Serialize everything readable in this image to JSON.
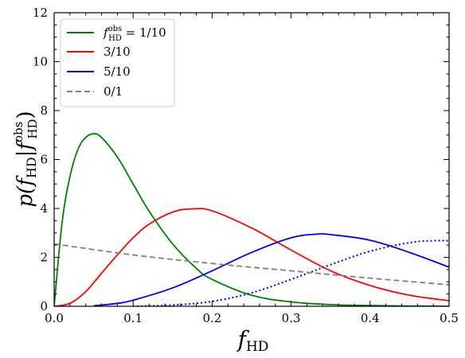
{
  "chart_data": {
    "type": "line",
    "xlabel_main": "f",
    "xlabel_sub": "HD",
    "ylabel": {
      "p": "p(",
      "f": "f",
      "sub1": "HD",
      "bar": "|",
      "f2": "f",
      "sup": "obs",
      "sub2": "HD",
      "close": ")"
    },
    "xlim": [
      0.0,
      0.5
    ],
    "ylim": [
      0,
      12
    ],
    "x_ticks": [
      "0.0",
      "0.1",
      "0.2",
      "0.3",
      "0.4",
      "0.5"
    ],
    "y_ticks": [
      "0",
      "2",
      "4",
      "6",
      "8",
      "10",
      "12"
    ],
    "legend_position": "top-left",
    "legend": [
      {
        "label_parts": {
          "f": "f",
          "sup": "obs",
          "sub": "HD",
          "rest": " = 1/10"
        },
        "color": "#008000",
        "style": "solid"
      },
      {
        "label": "3/10",
        "color": "#ff0000",
        "style": "solid"
      },
      {
        "label": "5/10",
        "color": "#0000ff",
        "style": "solid"
      },
      {
        "label": "0/1",
        "color": "#808080",
        "style": "dashed"
      }
    ],
    "series": [
      {
        "color": "#008000",
        "style": "solid",
        "x": [
          0.0,
          0.01,
          0.02,
          0.03,
          0.04,
          0.05,
          0.06,
          0.08,
          0.1,
          0.12,
          0.15,
          0.18,
          0.2,
          0.25,
          0.3,
          0.35,
          0.4,
          0.45,
          0.5
        ],
        "y": [
          0.0,
          3.4,
          5.3,
          6.4,
          6.9,
          7.05,
          6.9,
          6.1,
          5.0,
          3.9,
          2.55,
          1.55,
          1.1,
          0.45,
          0.18,
          0.07,
          0.03,
          0.01,
          0.0
        ]
      },
      {
        "color": "#ff0000",
        "style": "solid",
        "x": [
          0.0,
          0.02,
          0.04,
          0.06,
          0.08,
          0.1,
          0.12,
          0.15,
          0.175,
          0.2,
          0.25,
          0.3,
          0.35,
          0.4,
          0.45,
          0.5
        ],
        "y": [
          0.0,
          0.12,
          0.6,
          1.35,
          2.1,
          2.8,
          3.35,
          3.85,
          3.98,
          3.9,
          3.2,
          2.3,
          1.45,
          0.85,
          0.45,
          0.23
        ]
      },
      {
        "color": "#0000ff",
        "style": "solid",
        "x": [
          0.05,
          0.08,
          0.1,
          0.15,
          0.2,
          0.25,
          0.3,
          0.333,
          0.35,
          0.4,
          0.45,
          0.5
        ],
        "y": [
          0.02,
          0.12,
          0.25,
          0.75,
          1.45,
          2.2,
          2.8,
          2.95,
          2.93,
          2.7,
          2.2,
          1.6
        ]
      },
      {
        "color": "#0000ff",
        "style": "dotted",
        "x": [
          0.1,
          0.15,
          0.2,
          0.25,
          0.3,
          0.35,
          0.4,
          0.45,
          0.48,
          0.5
        ],
        "y": [
          0.0,
          0.05,
          0.2,
          0.55,
          1.1,
          1.7,
          2.25,
          2.6,
          2.68,
          2.68
        ]
      },
      {
        "color": "#808080",
        "style": "dashed",
        "x": [
          0.0,
          0.1,
          0.2,
          0.3,
          0.4,
          0.5
        ],
        "y": [
          2.55,
          2.1,
          1.75,
          1.45,
          1.15,
          0.88
        ]
      }
    ]
  }
}
